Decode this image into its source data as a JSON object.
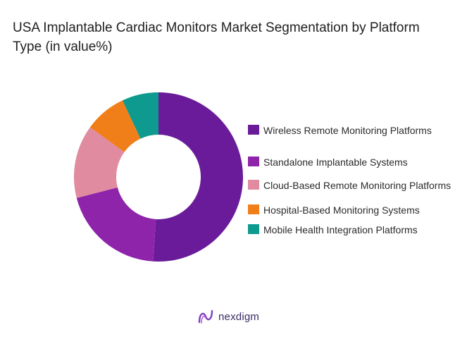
{
  "title": "USA Implantable Cardiac Monitors Market Segmentation by Platform Type (in value%)",
  "brand": {
    "name": "nexdigm",
    "icon": "nexdigm-logo-icon"
  },
  "chart_data": {
    "type": "pie",
    "donut": true,
    "legend_position": "right",
    "categories": [
      "Wireless Remote Monitoring Platforms",
      "Standalone Implantable Systems",
      "Cloud-Based Remote Monitoring Platforms",
      "Hospital-Based Monitoring Systems",
      "Mobile Health Integration Platforms"
    ],
    "values": [
      51,
      20,
      14,
      8,
      7
    ],
    "colors": [
      "#6a1b9a",
      "#8e24aa",
      "#e08ba0",
      "#f07f1a",
      "#0e9a8e"
    ]
  }
}
